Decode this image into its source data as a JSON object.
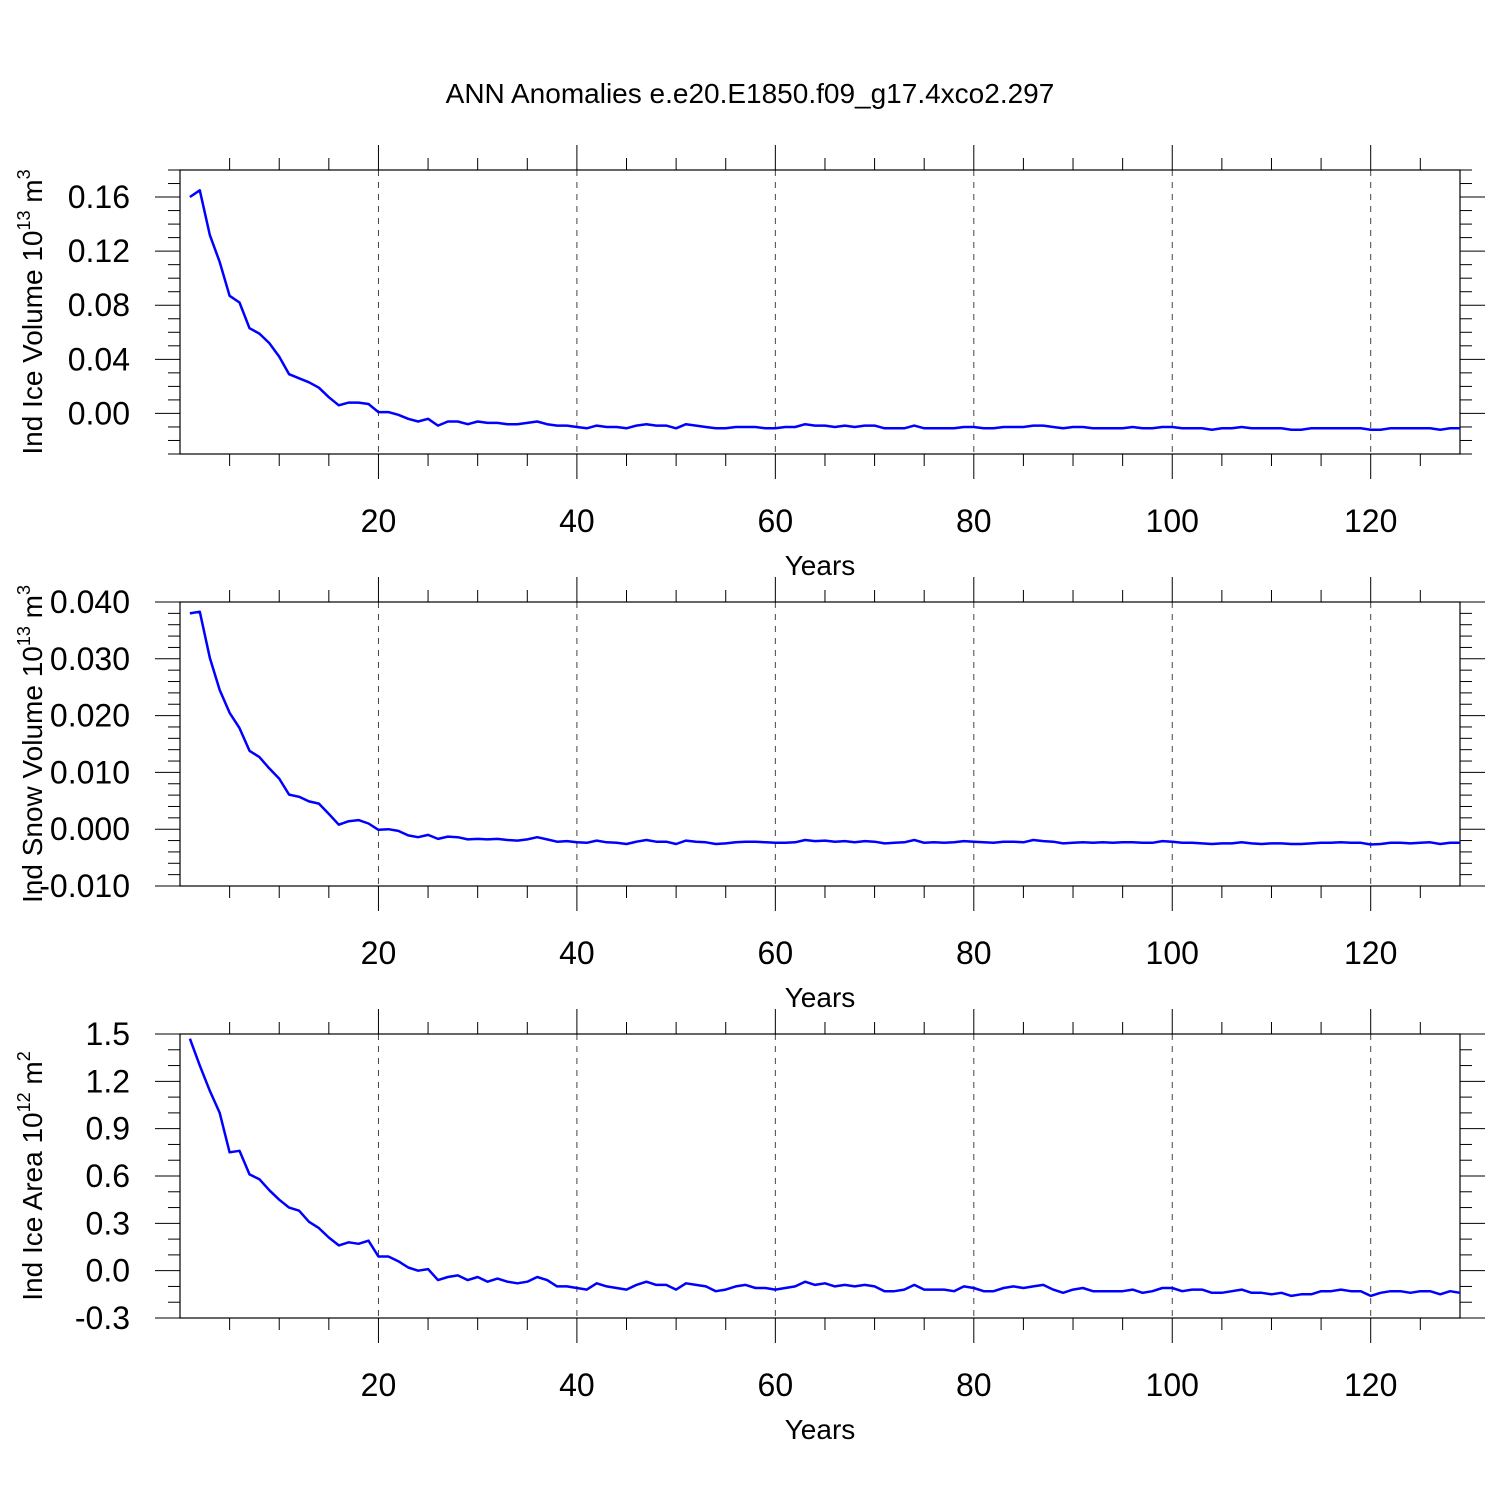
{
  "title": "ANN Anomalies e.e20.E1850.f09_g17.4xco2.297",
  "colors": {
    "series": "#0000ff",
    "axis": "#000000",
    "grid": "#444444"
  },
  "chart_data": [
    {
      "type": "line",
      "ylabel": "Ind Ice Volume 10",
      "ylabel_exp": "13",
      "ylabel_unit": " m",
      "ylabel_unit_exp": "3",
      "xlabel": "Years",
      "xlim": [
        0,
        129
      ],
      "ylim": [
        -0.03,
        0.18
      ],
      "xticks": [
        20,
        40,
        60,
        80,
        100,
        120
      ],
      "xtick_labels": [
        "20",
        "40",
        "60",
        "80",
        "100",
        "120"
      ],
      "yticks": [
        0.0,
        0.04,
        0.08,
        0.12,
        0.16
      ],
      "ytick_labels": [
        "0.00",
        "0.04",
        "0.08",
        "0.12",
        "0.16"
      ],
      "y_minor_step": 0.01,
      "grid": "vertical dashed at x major ticks",
      "series": [
        {
          "name": "Ind Ice Volume",
          "x_start": 1,
          "values": [
            0.16,
            0.165,
            0.132,
            0.112,
            0.087,
            0.082,
            0.063,
            0.059,
            0.052,
            0.042,
            0.029,
            0.026,
            0.023,
            0.019,
            0.012,
            0.006,
            0.008,
            0.008,
            0.007,
            0.001,
            0.001,
            -0.001,
            -0.004,
            -0.006,
            -0.004,
            -0.009,
            -0.006,
            -0.006,
            -0.008,
            -0.006,
            -0.007,
            -0.007,
            -0.008,
            -0.008,
            -0.007,
            -0.006,
            -0.008,
            -0.009,
            -0.009,
            -0.01,
            -0.011,
            -0.009,
            -0.01,
            -0.01,
            -0.011,
            -0.009,
            -0.008,
            -0.009,
            -0.009,
            -0.011,
            -0.008,
            -0.009,
            -0.01,
            -0.011,
            -0.011,
            -0.01,
            -0.01,
            -0.01,
            -0.011,
            -0.011,
            -0.01,
            -0.01,
            -0.008,
            -0.009,
            -0.009,
            -0.01,
            -0.009,
            -0.01,
            -0.009,
            -0.009,
            -0.011,
            -0.011,
            -0.011,
            -0.009,
            -0.011,
            -0.011,
            -0.011,
            -0.011,
            -0.01,
            -0.01,
            -0.011,
            -0.011,
            -0.01,
            -0.01,
            -0.01,
            -0.009,
            -0.009,
            -0.01,
            -0.011,
            -0.01,
            -0.01,
            -0.011,
            -0.011,
            -0.011,
            -0.011,
            -0.01,
            -0.011,
            -0.011,
            -0.01,
            -0.01,
            -0.011,
            -0.011,
            -0.011,
            -0.012,
            -0.011,
            -0.011,
            -0.01,
            -0.011,
            -0.011,
            -0.011,
            -0.011,
            -0.012,
            -0.012,
            -0.011,
            -0.011,
            -0.011,
            -0.011,
            -0.011,
            -0.011,
            -0.012,
            -0.012,
            -0.011,
            -0.011,
            -0.011,
            -0.011,
            -0.011,
            -0.012,
            -0.011,
            -0.011
          ]
        }
      ]
    },
    {
      "type": "line",
      "ylabel": "Ind Snow Volume 10",
      "ylabel_exp": "13",
      "ylabel_unit": " m",
      "ylabel_unit_exp": "3",
      "xlabel": "Years",
      "xlim": [
        0,
        129
      ],
      "ylim": [
        -0.01,
        0.04
      ],
      "xticks": [
        20,
        40,
        60,
        80,
        100,
        120
      ],
      "xtick_labels": [
        "20",
        "40",
        "60",
        "80",
        "100",
        "120"
      ],
      "yticks": [
        -0.01,
        0.0,
        0.01,
        0.02,
        0.03,
        0.04
      ],
      "ytick_labels": [
        "-0.010",
        "0.000",
        "0.010",
        "0.020",
        "0.030",
        "0.040"
      ],
      "y_minor_step": 0.002,
      "grid": "vertical dashed at x major ticks",
      "series": [
        {
          "name": "Ind Snow Volume",
          "x_start": 1,
          "values": [
            0.038,
            0.0383,
            0.0302,
            0.0245,
            0.0205,
            0.0178,
            0.0138,
            0.0127,
            0.0107,
            0.0089,
            0.0061,
            0.0057,
            0.0049,
            0.0045,
            0.0027,
            0.0008,
            0.0014,
            0.0016,
            0.001,
            -0.0001,
            0.0,
            -0.0003,
            -0.0011,
            -0.0014,
            -0.001,
            -0.0017,
            -0.0013,
            -0.0014,
            -0.0018,
            -0.0017,
            -0.0018,
            -0.0017,
            -0.0019,
            -0.002,
            -0.0018,
            -0.0014,
            -0.0018,
            -0.0022,
            -0.0021,
            -0.0023,
            -0.0024,
            -0.002,
            -0.0023,
            -0.0024,
            -0.0026,
            -0.0022,
            -0.0019,
            -0.0022,
            -0.0022,
            -0.0026,
            -0.002,
            -0.0022,
            -0.0023,
            -0.0026,
            -0.0025,
            -0.0023,
            -0.0022,
            -0.0022,
            -0.0023,
            -0.0024,
            -0.0024,
            -0.0023,
            -0.0019,
            -0.0021,
            -0.002,
            -0.0022,
            -0.0021,
            -0.0023,
            -0.0021,
            -0.0022,
            -0.0025,
            -0.0024,
            -0.0023,
            -0.0019,
            -0.0024,
            -0.0023,
            -0.0024,
            -0.0023,
            -0.0021,
            -0.0022,
            -0.0023,
            -0.0024,
            -0.0022,
            -0.0022,
            -0.0023,
            -0.0019,
            -0.0021,
            -0.0022,
            -0.0025,
            -0.0024,
            -0.0023,
            -0.0024,
            -0.0023,
            -0.0024,
            -0.0023,
            -0.0023,
            -0.0024,
            -0.0024,
            -0.0021,
            -0.0022,
            -0.0024,
            -0.0024,
            -0.0025,
            -0.0026,
            -0.0025,
            -0.0025,
            -0.0023,
            -0.0025,
            -0.0026,
            -0.0025,
            -0.0025,
            -0.0026,
            -0.0026,
            -0.0025,
            -0.0024,
            -0.0024,
            -0.0023,
            -0.0024,
            -0.0024,
            -0.0027,
            -0.0026,
            -0.0024,
            -0.0024,
            -0.0025,
            -0.0024,
            -0.0023,
            -0.0026,
            -0.0024,
            -0.0024
          ]
        }
      ]
    },
    {
      "type": "line",
      "ylabel": "Ind Ice Area 10",
      "ylabel_exp": "12",
      "ylabel_unit": " m",
      "ylabel_unit_exp": "2",
      "xlabel": "Years",
      "xlim": [
        0,
        129
      ],
      "ylim": [
        -0.3,
        1.5
      ],
      "xticks": [
        20,
        40,
        60,
        80,
        100,
        120
      ],
      "xtick_labels": [
        "20",
        "40",
        "60",
        "80",
        "100",
        "120"
      ],
      "yticks": [
        -0.3,
        0.0,
        0.3,
        0.6,
        0.9,
        1.2,
        1.5
      ],
      "ytick_labels": [
        "-0.3",
        "0.0",
        "0.3",
        "0.6",
        "0.9",
        "1.2",
        "1.5"
      ],
      "y_minor_step": 0.1,
      "grid": "vertical dashed at x major ticks",
      "series": [
        {
          "name": "Ind Ice Area",
          "x_start": 1,
          "values": [
            1.47,
            1.3,
            1.14,
            1.0,
            0.75,
            0.76,
            0.61,
            0.58,
            0.51,
            0.45,
            0.4,
            0.38,
            0.31,
            0.27,
            0.21,
            0.16,
            0.18,
            0.17,
            0.19,
            0.09,
            0.09,
            0.06,
            0.02,
            0.0,
            0.01,
            -0.06,
            -0.04,
            -0.03,
            -0.06,
            -0.04,
            -0.07,
            -0.05,
            -0.07,
            -0.08,
            -0.07,
            -0.04,
            -0.06,
            -0.1,
            -0.1,
            -0.11,
            -0.12,
            -0.08,
            -0.1,
            -0.11,
            -0.12,
            -0.09,
            -0.07,
            -0.09,
            -0.09,
            -0.12,
            -0.08,
            -0.09,
            -0.1,
            -0.13,
            -0.12,
            -0.1,
            -0.09,
            -0.11,
            -0.11,
            -0.12,
            -0.11,
            -0.1,
            -0.07,
            -0.09,
            -0.08,
            -0.1,
            -0.09,
            -0.1,
            -0.09,
            -0.1,
            -0.13,
            -0.13,
            -0.12,
            -0.09,
            -0.12,
            -0.12,
            -0.12,
            -0.13,
            -0.1,
            -0.11,
            -0.13,
            -0.13,
            -0.11,
            -0.1,
            -0.11,
            -0.1,
            -0.09,
            -0.12,
            -0.14,
            -0.12,
            -0.11,
            -0.13,
            -0.13,
            -0.13,
            -0.13,
            -0.12,
            -0.14,
            -0.13,
            -0.11,
            -0.11,
            -0.13,
            -0.12,
            -0.12,
            -0.14,
            -0.14,
            -0.13,
            -0.12,
            -0.14,
            -0.14,
            -0.15,
            -0.14,
            -0.16,
            -0.15,
            -0.15,
            -0.13,
            -0.13,
            -0.12,
            -0.13,
            -0.13,
            -0.16,
            -0.14,
            -0.13,
            -0.13,
            -0.14,
            -0.13,
            -0.13,
            -0.15,
            -0.13,
            -0.14
          ]
        }
      ]
    }
  ]
}
